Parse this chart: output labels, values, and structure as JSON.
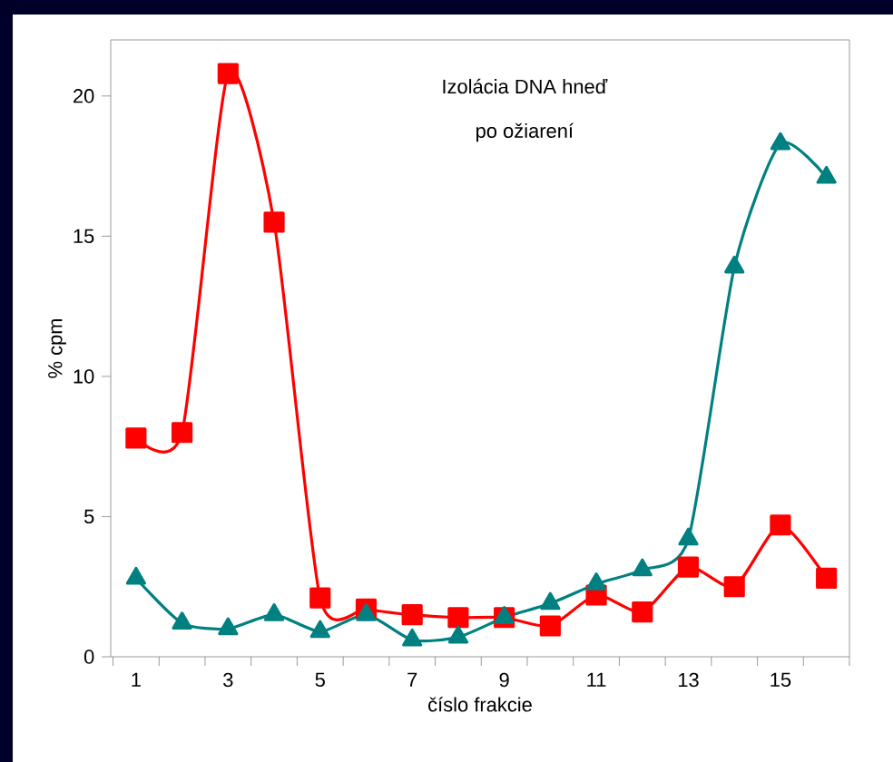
{
  "chart_data": {
    "type": "line",
    "xlabel": "číslo frakcie",
    "ylabel": "% cpm",
    "annotations": [
      "Izolácia DNA hneď",
      "po ožiarení"
    ],
    "categories": [
      "1",
      null,
      "3",
      null,
      "5",
      null,
      "7",
      null,
      "9",
      null,
      "11",
      null,
      "13",
      null,
      "15",
      null
    ],
    "series": [
      {
        "color": "#ff0000",
        "marker": "square",
        "values": [
          7.8,
          8.0,
          20.8,
          15.5,
          2.1,
          1.7,
          1.5,
          1.4,
          1.4,
          1.1,
          2.2,
          1.6,
          3.2,
          2.5,
          4.7,
          2.8
        ]
      },
      {
        "color": "#008080",
        "marker": "triangle",
        "values": [
          2.8,
          1.2,
          1.0,
          1.5,
          0.9,
          1.5,
          0.6,
          0.7,
          1.4,
          1.9,
          2.6,
          3.1,
          4.2,
          13.9,
          18.3,
          17.1
        ]
      }
    ],
    "ylim": [
      0,
      22
    ],
    "yticks": [
      0,
      5,
      10,
      15,
      20
    ],
    "grid": false,
    "line_style": "solid"
  }
}
